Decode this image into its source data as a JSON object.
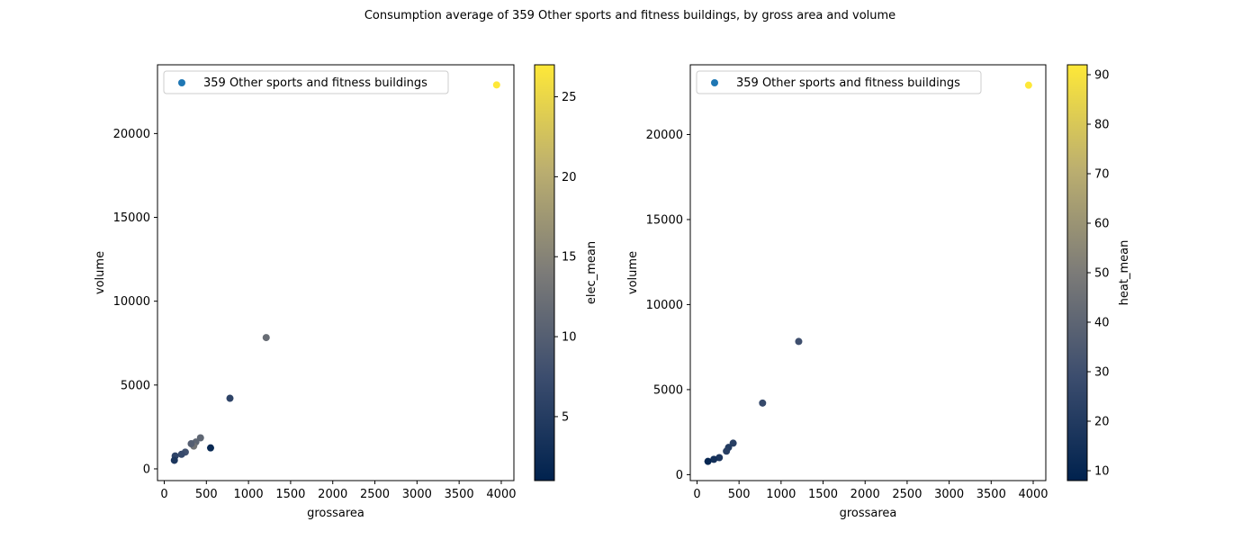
{
  "figure": {
    "suptitle": "Consumption average of 359 Other sports and fitness buildings, by gross area and volume"
  },
  "chart_data": [
    {
      "type": "scatter",
      "title": "",
      "xlabel": "grossarea",
      "ylabel": "volume",
      "colorbar_label": "elec_mean",
      "legend": "359 Other sports and fitness buildings",
      "legend_position": "top-left",
      "xlim": [
        -80,
        4150
      ],
      "ylim": [
        -700,
        24100
      ],
      "xticks": [
        0,
        500,
        1000,
        1500,
        2000,
        2500,
        3000,
        3500,
        4000
      ],
      "yticks": [
        0,
        5000,
        10000,
        15000,
        20000
      ],
      "clim": [
        1,
        27
      ],
      "cticks": [
        5,
        10,
        15,
        20,
        25
      ],
      "colormap": "cividis",
      "points": [
        {
          "x": 3945,
          "y": 22900,
          "c": 27
        },
        {
          "x": 1210,
          "y": 7830,
          "c": 12
        },
        {
          "x": 780,
          "y": 4210,
          "c": 6
        },
        {
          "x": 430,
          "y": 1850,
          "c": 11
        },
        {
          "x": 375,
          "y": 1600,
          "c": 11
        },
        {
          "x": 350,
          "y": 1360,
          "c": 13
        },
        {
          "x": 320,
          "y": 1500,
          "c": 10
        },
        {
          "x": 550,
          "y": 1250,
          "c": 2
        },
        {
          "x": 250,
          "y": 1000,
          "c": 8
        },
        {
          "x": 205,
          "y": 870,
          "c": 7
        },
        {
          "x": 130,
          "y": 770,
          "c": 6
        },
        {
          "x": 120,
          "y": 510,
          "c": 4
        }
      ]
    },
    {
      "type": "scatter",
      "title": "",
      "xlabel": "grossarea",
      "ylabel": "volume",
      "colorbar_label": "heat_mean",
      "legend": "359 Other sports and fitness buildings",
      "legend_position": "top-left",
      "xlim": [
        -80,
        4150
      ],
      "ylim": [
        -350,
        24100
      ],
      "xticks": [
        0,
        500,
        1000,
        1500,
        2000,
        2500,
        3000,
        3500,
        4000
      ],
      "yticks": [
        0,
        5000,
        10000,
        15000,
        20000
      ],
      "clim": [
        8,
        92
      ],
      "cticks": [
        10,
        20,
        30,
        40,
        50,
        60,
        70,
        80,
        90
      ],
      "colormap": "cividis",
      "points": [
        {
          "x": 3945,
          "y": 22900,
          "c": 92
        },
        {
          "x": 1210,
          "y": 7830,
          "c": 30
        },
        {
          "x": 780,
          "y": 4210,
          "c": 27
        },
        {
          "x": 430,
          "y": 1850,
          "c": 22
        },
        {
          "x": 375,
          "y": 1600,
          "c": 20
        },
        {
          "x": 350,
          "y": 1380,
          "c": 22
        },
        {
          "x": 265,
          "y": 1000,
          "c": 18
        },
        {
          "x": 200,
          "y": 900,
          "c": 15
        },
        {
          "x": 130,
          "y": 780,
          "c": 10
        }
      ]
    }
  ]
}
